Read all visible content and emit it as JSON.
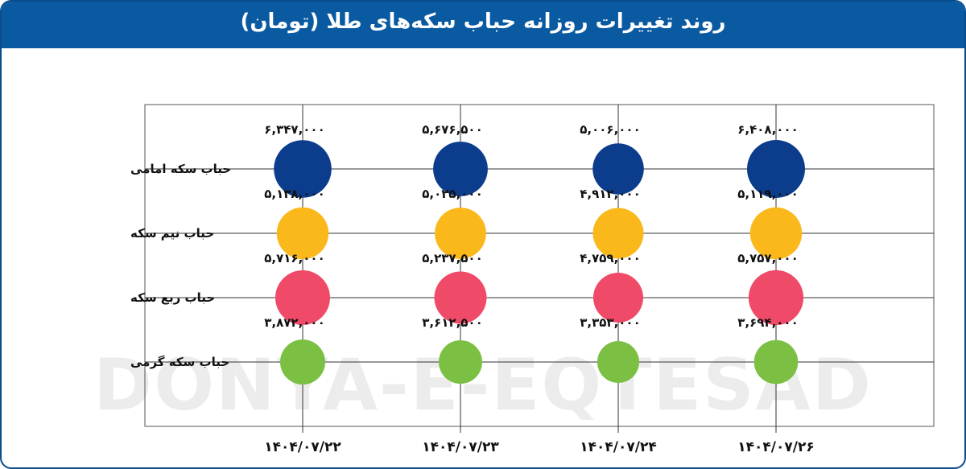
{
  "title": "روند تغییرات روزانه حباب سکه‌های طلا (تومان)",
  "watermark": "DONYA-E-EQTESAD",
  "chart_data": {
    "type": "scatter",
    "categories": [
      "۱۴۰۴/۰۷/۲۲",
      "۱۴۰۴/۰۷/۲۳",
      "۱۴۰۴/۰۷/۲۴",
      "۱۴۰۴/۰۷/۲۶"
    ],
    "series": [
      {
        "name": "حباب سکه امامی",
        "color": "#0b3d8c",
        "values": [
          6347000,
          5676500,
          5006000,
          6408000
        ],
        "labels": [
          "۶,۳۴۷,۰۰۰",
          "۵,۶۷۶,۵۰۰",
          "۵,۰۰۶,۰۰۰",
          "۶,۴۰۸,۰۰۰"
        ]
      },
      {
        "name": "حباب نیم سکه",
        "color": "#fbb81b",
        "values": [
          5138000,
          5025000,
          4912000,
          5119000
        ],
        "labels": [
          "۵,۱۳۸,۰۰۰",
          "۵,۰۲۵,۰۰۰",
          "۴,۹۱۲,۰۰۰",
          "۵,۱۱۹,۰۰۰"
        ]
      },
      {
        "name": "حباب ربع سکه",
        "color": "#ef4a67",
        "values": [
          5716000,
          5237500,
          4759000,
          5757000
        ],
        "labels": [
          "۵,۷۱۶,۰۰۰",
          "۵,۲۳۷,۵۰۰",
          "۴,۷۵۹,۰۰۰",
          "۵,۷۵۷,۰۰۰"
        ]
      },
      {
        "name": "حباب سکه گرمی",
        "color": "#7bc043",
        "values": [
          3872000,
          3612500,
          3353000,
          3694000
        ],
        "labels": [
          "۳,۸۷۲,۰۰۰",
          "۳,۶۱۲,۵۰۰",
          "۳,۳۵۳,۰۰۰",
          "۳,۶۹۴,۰۰۰"
        ]
      }
    ],
    "grid": true
  }
}
